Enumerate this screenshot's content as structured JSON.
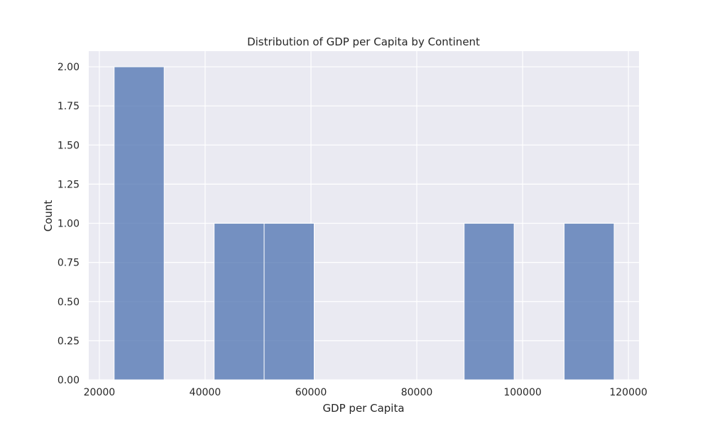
{
  "chart_data": {
    "type": "bar",
    "title": "Distribution of GDP per Capita by Continent",
    "xlabel": "GDP per Capita",
    "ylabel": "Count",
    "bins": [
      {
        "x0": 22800,
        "x1": 32250,
        "count": 2
      },
      {
        "x0": 32250,
        "x1": 41700,
        "count": 0
      },
      {
        "x0": 41700,
        "x1": 51150,
        "count": 1
      },
      {
        "x0": 51150,
        "x1": 60600,
        "count": 1
      },
      {
        "x0": 60600,
        "x1": 70050,
        "count": 0
      },
      {
        "x0": 70050,
        "x1": 79500,
        "count": 0
      },
      {
        "x0": 79500,
        "x1": 88950,
        "count": 0
      },
      {
        "x0": 88950,
        "x1": 98400,
        "count": 1
      },
      {
        "x0": 98400,
        "x1": 107850,
        "count": 0
      },
      {
        "x0": 107850,
        "x1": 117300,
        "count": 1
      }
    ],
    "xlim": [
      18000,
      122000
    ],
    "ylim": [
      0,
      2.1
    ],
    "xticks": [
      20000,
      40000,
      60000,
      80000,
      100000,
      120000
    ],
    "yticks": [
      "0.00",
      "0.25",
      "0.50",
      "0.75",
      "1.00",
      "1.25",
      "1.50",
      "1.75",
      "2.00"
    ],
    "grid": true,
    "colors": {
      "bar": "#4c72b0",
      "plot_background": "#eaeaf2",
      "grid": "#ffffff"
    }
  }
}
